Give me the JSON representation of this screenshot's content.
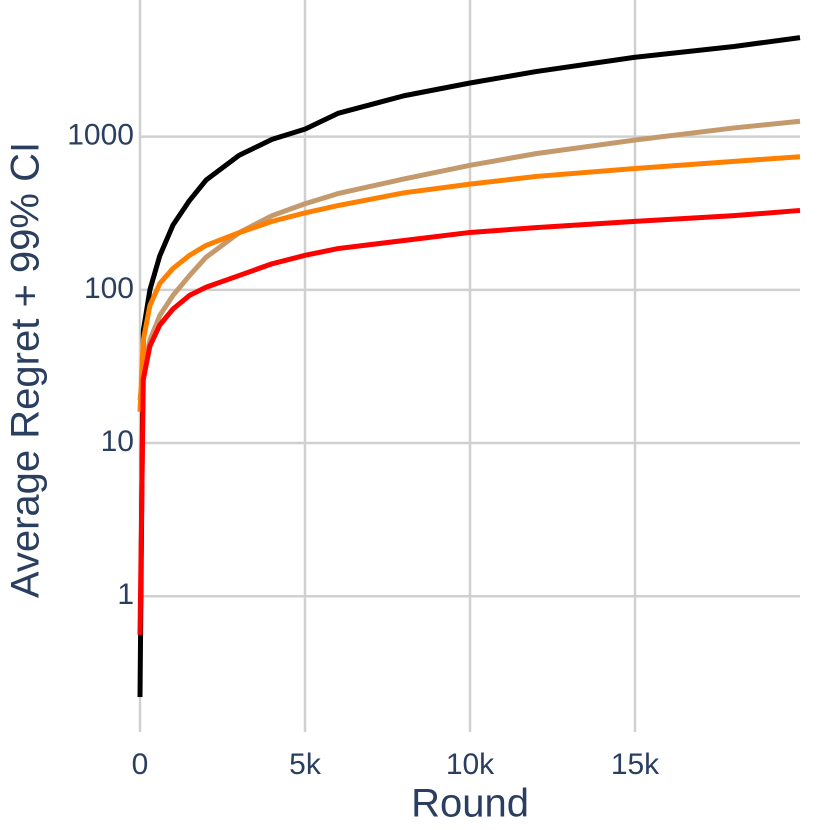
{
  "chart_data": {
    "type": "line",
    "x_label": "Round",
    "y_label": "Average Regret + 99% CI",
    "x": [
      0,
      100,
      300,
      600,
      1000,
      1500,
      2000,
      3000,
      4000,
      5000,
      6000,
      8000,
      10000,
      12000,
      15000,
      18000,
      20000
    ],
    "series": [
      {
        "color": "#000000",
        "values": [
          0.22,
          54,
          100,
          167,
          265,
          383,
          520,
          755,
          960,
          1120,
          1420,
          1850,
          2240,
          2660,
          3300,
          3880,
          4430
        ]
      },
      {
        "color": "#c49a6c",
        "values": [
          19,
          30,
          47,
          68,
          92,
          124,
          163,
          236,
          305,
          365,
          425,
          530,
          650,
          775,
          950,
          1140,
          1260
        ]
      },
      {
        "color": "#ff8000",
        "values": [
          16,
          47,
          79,
          110,
          138,
          168,
          195,
          236,
          280,
          318,
          355,
          430,
          490,
          550,
          620,
          690,
          740
        ]
      },
      {
        "color": "#ff0000",
        "values": [
          0.56,
          26,
          43,
          59,
          75,
          92,
          104,
          124,
          148,
          168,
          186,
          210,
          237,
          255,
          280,
          305,
          330
        ]
      }
    ],
    "xlim": [
      0,
      20000
    ],
    "xticks": [
      0,
      {
        "value": 5000,
        "label": "5k"
      },
      {
        "value": 10000,
        "label": "10k"
      },
      {
        "value": 15000,
        "label": "15k"
      }
    ],
    "ylim": [
      0.13,
      7800
    ],
    "yticks": [
      1,
      10,
      100,
      1000
    ],
    "y_log": true,
    "grid": true
  }
}
